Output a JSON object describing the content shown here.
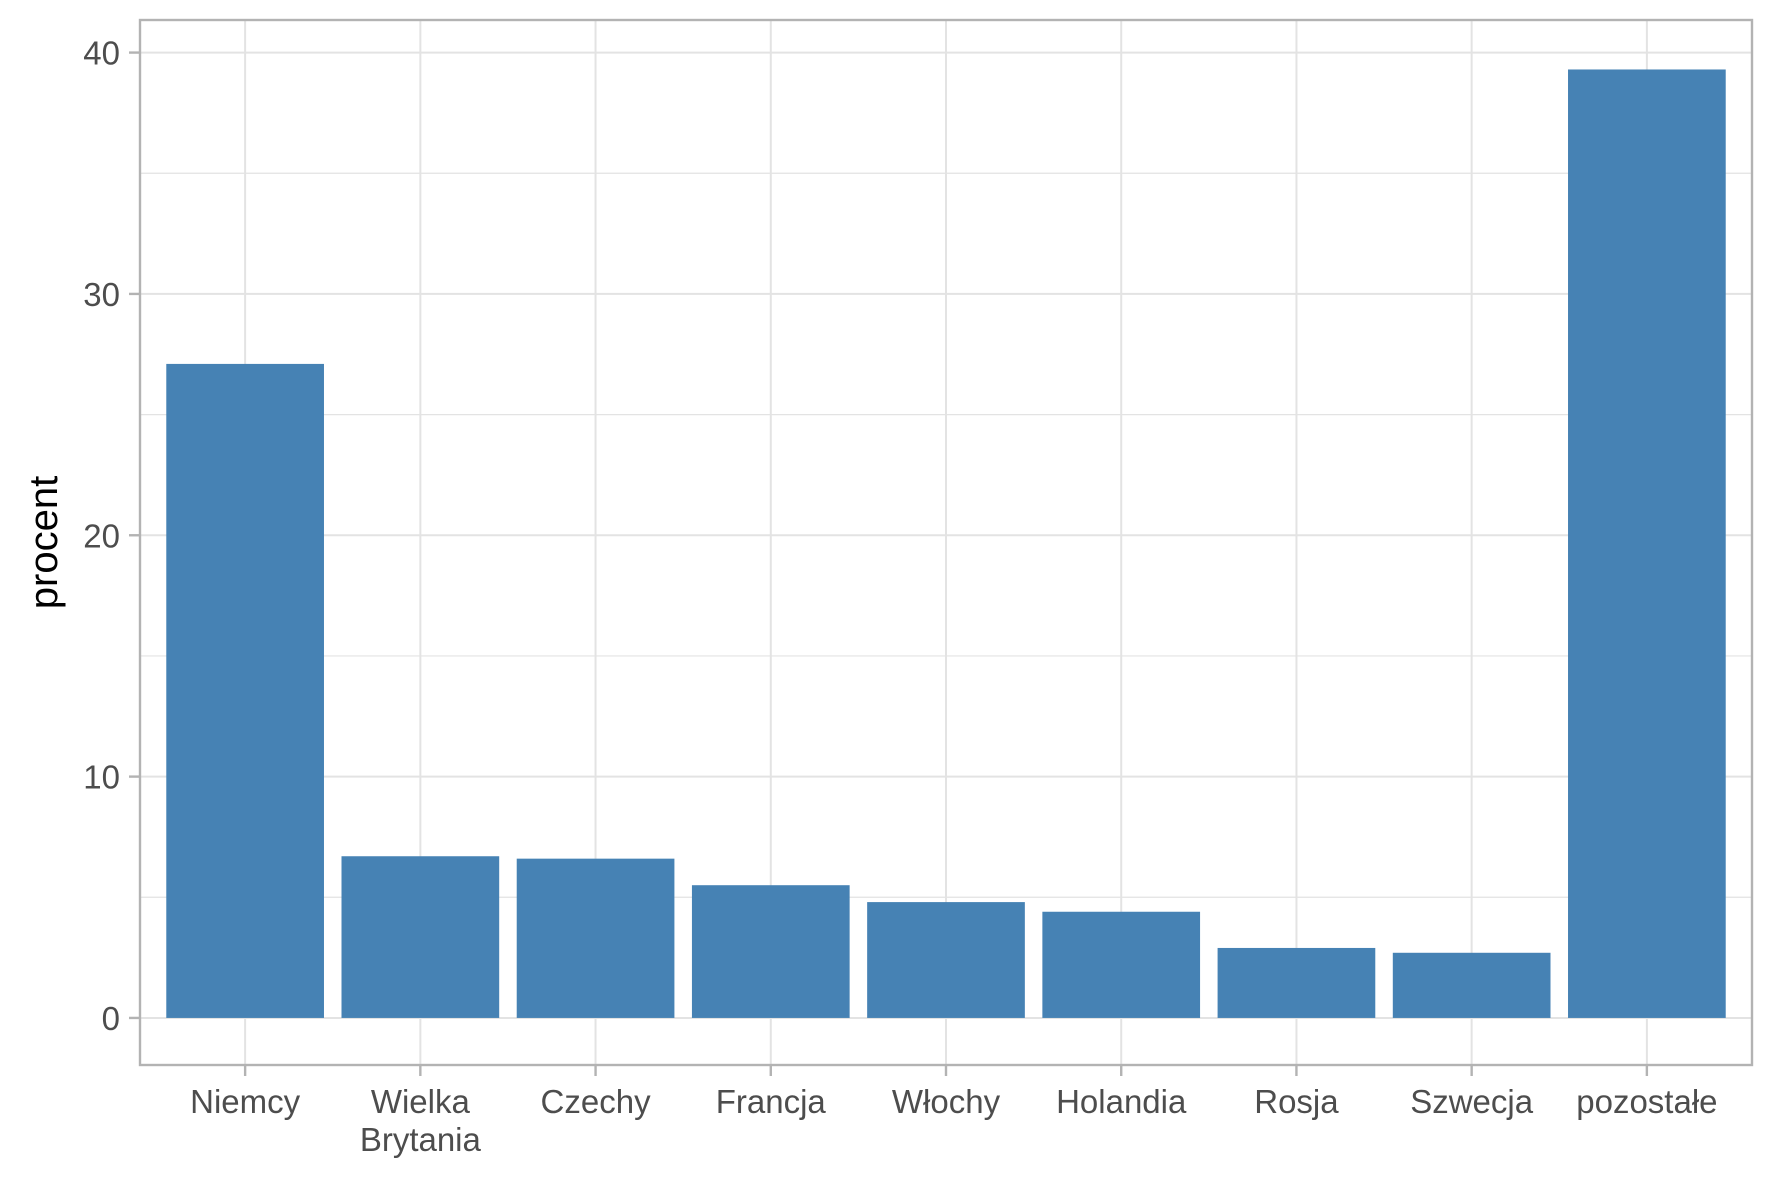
{
  "chart_data": {
    "type": "bar",
    "categories": [
      "Niemcy",
      "Wielka Brytania",
      "Czechy",
      "Francja",
      "Włochy",
      "Holandia",
      "Rosja",
      "Szwecja",
      "pozostałe"
    ],
    "category_lines": [
      [
        "Niemcy"
      ],
      [
        "Wielka",
        "Brytania"
      ],
      [
        "Czechy"
      ],
      [
        "Francja"
      ],
      [
        "Włochy"
      ],
      [
        "Holandia"
      ],
      [
        "Rosja"
      ],
      [
        "Szwecja"
      ],
      [
        "pozostałe"
      ]
    ],
    "values": [
      27.1,
      6.7,
      6.6,
      5.5,
      4.8,
      4.4,
      2.9,
      2.7,
      39.3
    ],
    "xlabel": "",
    "ylabel": "procent",
    "ylim": [
      -1.95,
      41.35
    ],
    "yticks": [
      0,
      10,
      20,
      30,
      40
    ],
    "grid": true,
    "colors": {
      "bar": "#4682B4",
      "grid": "#e3e3e3",
      "panel_border": "#b3b3b3",
      "tick": "#b3b3b3",
      "tick_label": "#4d4d4d"
    }
  }
}
